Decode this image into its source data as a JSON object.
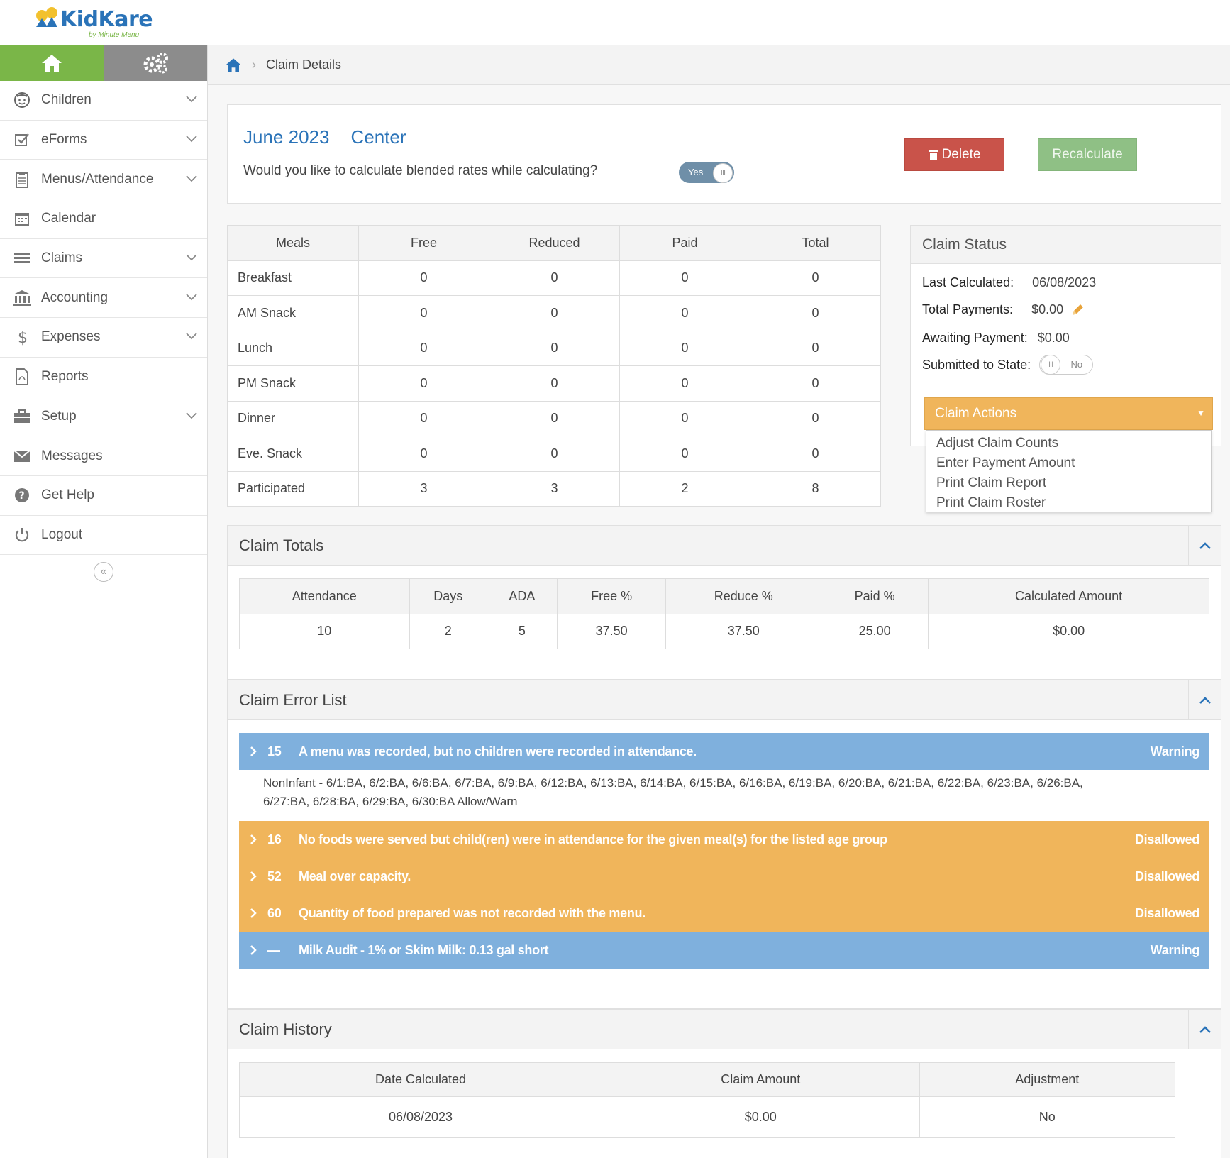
{
  "brand": {
    "name": "KidKare",
    "tagline": "by Minute Menu"
  },
  "sidebar": {
    "items": [
      {
        "label": "Children",
        "icon": "child-face-icon",
        "expandable": true
      },
      {
        "label": "eForms",
        "icon": "checkbox-form-icon",
        "expandable": true
      },
      {
        "label": "Menus/Attendance",
        "icon": "clipboard-icon",
        "expandable": true
      },
      {
        "label": "Calendar",
        "icon": "calendar-icon",
        "expandable": false
      },
      {
        "label": "Claims",
        "icon": "claims-list-icon",
        "expandable": true
      },
      {
        "label": "Accounting",
        "icon": "bank-icon",
        "expandable": true
      },
      {
        "label": "Expenses",
        "icon": "dollar-icon",
        "expandable": true
      },
      {
        "label": "Reports",
        "icon": "report-file-icon",
        "expandable": false
      },
      {
        "label": "Setup",
        "icon": "briefcase-icon",
        "expandable": true
      },
      {
        "label": "Messages",
        "icon": "envelope-icon",
        "expandable": false
      },
      {
        "label": "Get Help",
        "icon": "help-circle-icon",
        "expandable": false
      },
      {
        "label": "Logout",
        "icon": "power-icon",
        "expandable": false
      }
    ],
    "collapse_glyph": "«"
  },
  "breadcrumb": {
    "current": "Claim Details"
  },
  "claim": {
    "month": "June 2023",
    "type": "Center",
    "blend_question": "Would you like to calculate blended rates while calculating?",
    "blend_toggle": "Yes",
    "delete_label": "Delete",
    "recalculate_label": "Recalculate"
  },
  "meals_table": {
    "headers": [
      "Meals",
      "Free",
      "Reduced",
      "Paid",
      "Total"
    ],
    "rows": [
      [
        "Breakfast",
        "0",
        "0",
        "0",
        "0"
      ],
      [
        "AM Snack",
        "0",
        "0",
        "0",
        "0"
      ],
      [
        "Lunch",
        "0",
        "0",
        "0",
        "0"
      ],
      [
        "PM Snack",
        "0",
        "0",
        "0",
        "0"
      ],
      [
        "Dinner",
        "0",
        "0",
        "0",
        "0"
      ],
      [
        "Eve. Snack",
        "0",
        "0",
        "0",
        "0"
      ],
      [
        "Participated",
        "3",
        "3",
        "2",
        "8"
      ]
    ]
  },
  "claim_status": {
    "title": "Claim Status",
    "last_calculated_label": "Last Calculated:",
    "last_calculated": "06/08/2023",
    "total_payments_label": "Total Payments:",
    "total_payments": "$0.00",
    "awaiting_payment_label": "Awaiting Payment:",
    "awaiting_payment": "$0.00",
    "submitted_label": "Submitted to State:",
    "submitted_toggle": "No",
    "actions_label": "Claim Actions",
    "actions_options": [
      "Adjust Claim Counts",
      "Enter Payment Amount",
      "Print Claim Report",
      "Print Claim Roster"
    ]
  },
  "claim_totals": {
    "title": "Claim Totals",
    "headers": [
      "Attendance",
      "Days",
      "ADA",
      "Free %",
      "Reduce %",
      "Paid %",
      "Calculated Amount"
    ],
    "values": [
      "10",
      "2",
      "5",
      "37.50",
      "37.50",
      "25.00",
      "$0.00"
    ]
  },
  "claim_errors": {
    "title": "Claim Error List",
    "items": [
      {
        "code": "15",
        "message": "A menu was recorded, but no children were recorded in attendance.",
        "severity": "Warning",
        "kind": "warn"
      },
      {
        "code": "16",
        "message": "No foods were served but child(ren) were in attendance for the given meal(s) for the listed age group",
        "severity": "Disallowed",
        "kind": "dis"
      },
      {
        "code": "52",
        "message": "Meal over capacity.",
        "severity": "Disallowed",
        "kind": "dis"
      },
      {
        "code": "60",
        "message": "Quantity of food prepared was not recorded with the menu.",
        "severity": "Disallowed",
        "kind": "dis"
      },
      {
        "code": "—",
        "message": "Milk Audit - 1% or Skim Milk: 0.13 gal short",
        "severity": "Warning",
        "kind": "warn"
      }
    ],
    "detail_line1": "NonInfant - 6/1:BA, 6/2:BA, 6/6:BA, 6/7:BA, 6/9:BA, 6/12:BA, 6/13:BA, 6/14:BA, 6/15:BA, 6/16:BA, 6/19:BA, 6/20:BA, 6/21:BA, 6/22:BA, 6/23:BA, 6/26:BA,",
    "detail_line2": "6/27:BA, 6/28:BA, 6/29:BA, 6/30:BA Allow/Warn"
  },
  "claim_history": {
    "title": "Claim History",
    "headers": [
      "Date Calculated",
      "Claim Amount",
      "Adjustment"
    ],
    "rows": [
      [
        "06/08/2023",
        "$0.00",
        "No"
      ]
    ]
  },
  "colors": {
    "brand_blue": "#2a73b8",
    "home_green": "#7ab648",
    "delete_red": "#c9534a",
    "recalc_green": "#8fc085",
    "warning_blue": "#7fb0dd",
    "disallowed_orange": "#f0b55b"
  }
}
